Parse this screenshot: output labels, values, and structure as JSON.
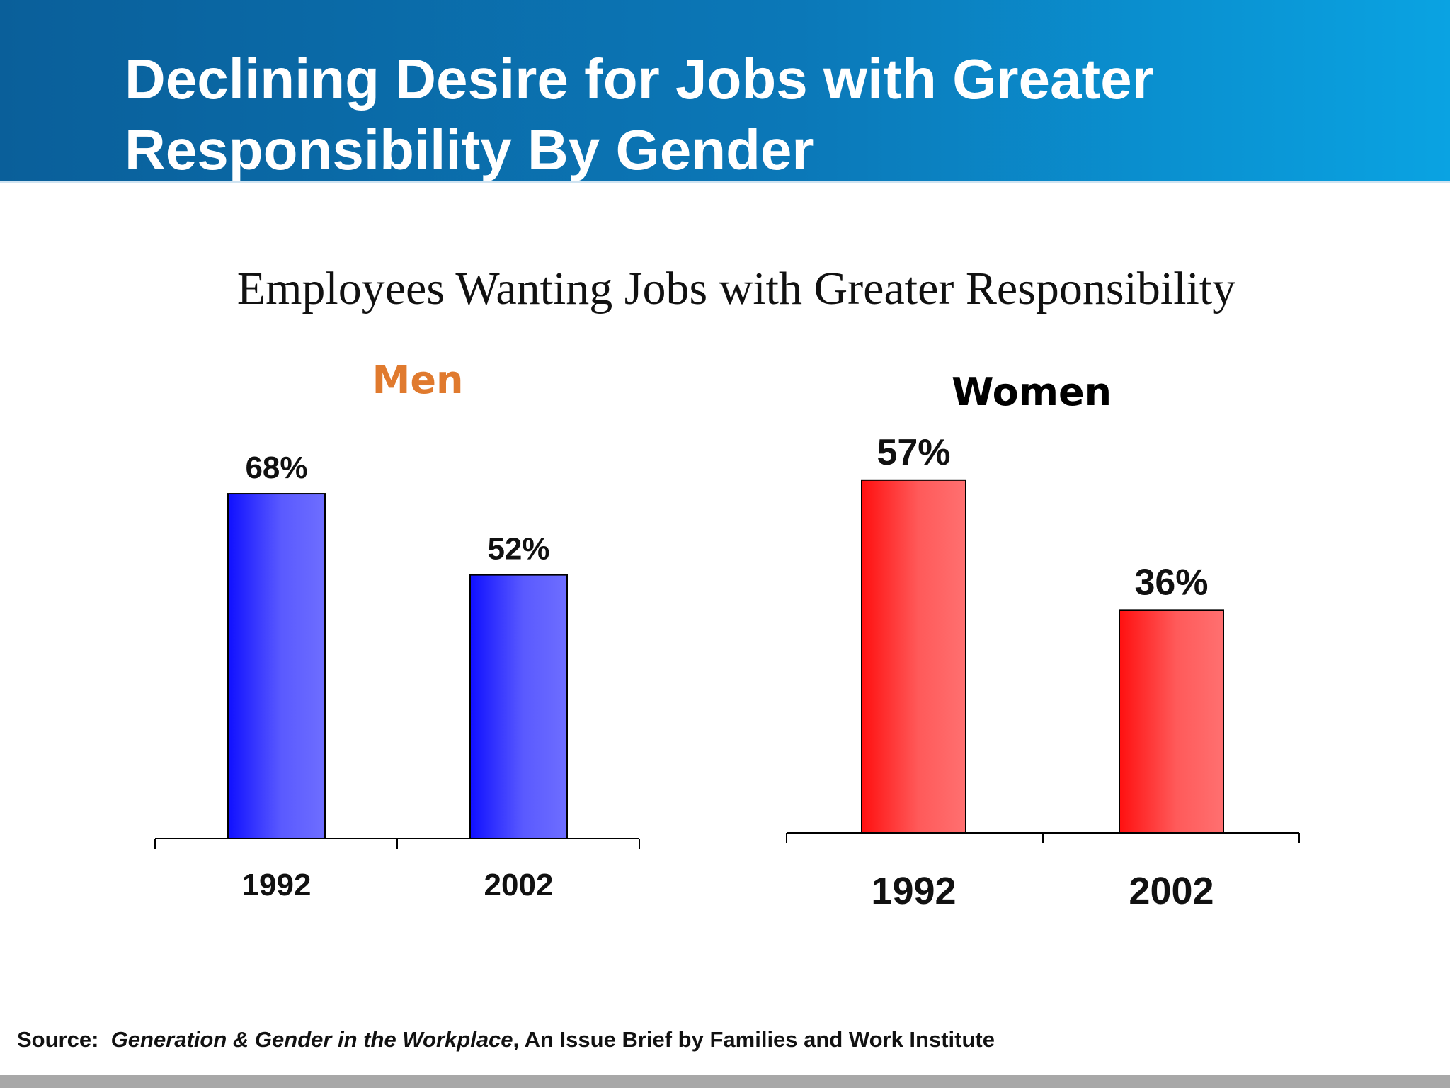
{
  "slide": {
    "title_line1": "Declining Desire for Jobs with Greater",
    "title_line2": "Responsibility By Gender",
    "subtitle": "Employees Wanting Jobs with Greater Responsibility"
  },
  "colors": {
    "header": "#0b78b8",
    "men_title": "#e07a2e",
    "women_title": "#000000",
    "men_bar": "#2020ff",
    "women_bar": "#ff2020"
  },
  "chart_data": [
    {
      "type": "bar",
      "title": "Men",
      "categories": [
        "1992",
        "2002"
      ],
      "values": [
        68,
        52
      ],
      "value_labels": [
        "68%",
        "52%"
      ],
      "ylim": [
        0,
        70
      ],
      "grid": false
    },
    {
      "type": "bar",
      "title": "Women",
      "categories": [
        "1992",
        "2002"
      ],
      "values": [
        57,
        36
      ],
      "value_labels": [
        "57%",
        "36%"
      ],
      "ylim": [
        0,
        60
      ],
      "grid": false
    }
  ],
  "source": {
    "label": "Source:",
    "publication": "Generation & Gender in the Workplace",
    "rest": ", An Issue Brief by Families and Work Institute"
  }
}
